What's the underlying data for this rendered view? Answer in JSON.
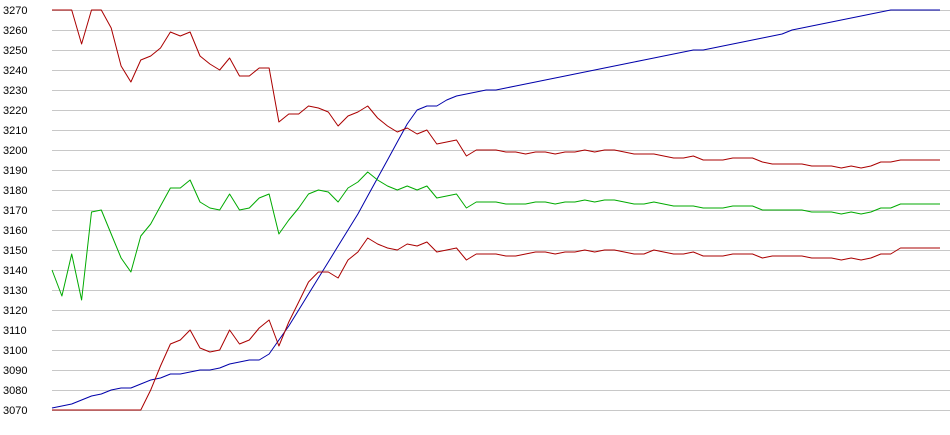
{
  "chart_data": {
    "type": "line",
    "title": "",
    "xlabel": "",
    "ylabel": "",
    "ylim": [
      3070,
      3270
    ],
    "y_ticks": [
      3070,
      3080,
      3090,
      3100,
      3110,
      3120,
      3130,
      3140,
      3150,
      3160,
      3170,
      3180,
      3190,
      3200,
      3210,
      3220,
      3230,
      3240,
      3250,
      3260,
      3270
    ],
    "grid": true,
    "legend": "none",
    "x": [
      0,
      1,
      2,
      3,
      4,
      5,
      6,
      7,
      8,
      9,
      10,
      11,
      12,
      13,
      14,
      15,
      16,
      17,
      18,
      19,
      20,
      21,
      22,
      23,
      24,
      25,
      26,
      27,
      28,
      29,
      30,
      31,
      32,
      33,
      34,
      35,
      36,
      37,
      38,
      39,
      40,
      41,
      42,
      43,
      44,
      45,
      46,
      47,
      48,
      49,
      50,
      51,
      52,
      53,
      54,
      55,
      56,
      57,
      58,
      59,
      60,
      61,
      62,
      63,
      64,
      65,
      66,
      67,
      68,
      69,
      70,
      71,
      72,
      73,
      74,
      75,
      76,
      77,
      78,
      79,
      80,
      81,
      82,
      83,
      84,
      85,
      86,
      87,
      88,
      89,
      90
    ],
    "series": [
      {
        "color": "#0000aa",
        "values": [
          3071,
          3072,
          3073,
          3075,
          3077,
          3078,
          3080,
          3081,
          3081,
          3083,
          3085,
          3086,
          3088,
          3088,
          3089,
          3090,
          3090,
          3091,
          3093,
          3094,
          3095,
          3095,
          3098,
          3105,
          3112,
          3120,
          3128,
          3136,
          3144,
          3152,
          3160,
          3168,
          3177,
          3186,
          3195,
          3204,
          3213,
          3220,
          3222,
          3222,
          3225,
          3227,
          3228,
          3229,
          3230,
          3230,
          3231,
          3232,
          3233,
          3234,
          3235,
          3236,
          3237,
          3238,
          3239,
          3240,
          3241,
          3242,
          3243,
          3244,
          3245,
          3246,
          3247,
          3248,
          3249,
          3250,
          3250,
          3251,
          3252,
          3253,
          3254,
          3255,
          3256,
          3257,
          3258,
          3260,
          3261,
          3262,
          3263,
          3264,
          3265,
          3266,
          3267,
          3268,
          3269,
          3270,
          3270,
          3270,
          3270,
          3270,
          3270
        ]
      },
      {
        "color": "#aa0000",
        "values": [
          3270,
          3270,
          3270,
          3253,
          3270,
          3270,
          3261,
          3242,
          3234,
          3245,
          3247,
          3251,
          3259,
          3257,
          3259,
          3247,
          3243,
          3240,
          3246,
          3237,
          3237,
          3241,
          3241,
          3214,
          3218,
          3218,
          3222,
          3221,
          3219,
          3212,
          3217,
          3219,
          3222,
          3216,
          3212,
          3209,
          3211,
          3208,
          3210,
          3203,
          3204,
          3205,
          3197,
          3200,
          3200,
          3200,
          3199,
          3199,
          3198,
          3199,
          3199,
          3198,
          3199,
          3199,
          3200,
          3199,
          3200,
          3200,
          3199,
          3198,
          3198,
          3198,
          3197,
          3196,
          3196,
          3197,
          3195,
          3195,
          3195,
          3196,
          3196,
          3196,
          3194,
          3193,
          3193,
          3193,
          3193,
          3192,
          3192,
          3192,
          3191,
          3192,
          3191,
          3192,
          3194,
          3194,
          3195,
          3195,
          3195,
          3195,
          3195
        ]
      },
      {
        "color": "#00aa00",
        "values": [
          3140,
          3127,
          3148,
          3125,
          3169,
          3170,
          3158,
          3146,
          3139,
          3157,
          3163,
          3172,
          3181,
          3181,
          3185,
          3174,
          3171,
          3170,
          3178,
          3170,
          3171,
          3176,
          3178,
          3158,
          3165,
          3171,
          3178,
          3180,
          3179,
          3174,
          3181,
          3184,
          3189,
          3185,
          3182,
          3180,
          3182,
          3180,
          3182,
          3176,
          3177,
          3178,
          3171,
          3174,
          3174,
          3174,
          3173,
          3173,
          3173,
          3174,
          3174,
          3173,
          3174,
          3174,
          3175,
          3174,
          3175,
          3175,
          3174,
          3173,
          3173,
          3174,
          3173,
          3172,
          3172,
          3172,
          3171,
          3171,
          3171,
          3172,
          3172,
          3172,
          3170,
          3170,
          3170,
          3170,
          3170,
          3169,
          3169,
          3169,
          3168,
          3169,
          3168,
          3169,
          3171,
          3171,
          3173,
          3173,
          3173,
          3173,
          3173
        ]
      },
      {
        "color": "#aa0000",
        "values": [
          3070,
          3070,
          3070,
          3070,
          3070,
          3070,
          3070,
          3070,
          3070,
          3070,
          3080,
          3092,
          3103,
          3105,
          3110,
          3101,
          3099,
          3100,
          3110,
          3103,
          3105,
          3111,
          3115,
          3102,
          3114,
          3124,
          3134,
          3139,
          3139,
          3136,
          3145,
          3149,
          3156,
          3153,
          3151,
          3150,
          3153,
          3152,
          3154,
          3149,
          3150,
          3151,
          3145,
          3148,
          3148,
          3148,
          3147,
          3147,
          3148,
          3149,
          3149,
          3148,
          3149,
          3149,
          3150,
          3149,
          3150,
          3150,
          3149,
          3148,
          3148,
          3150,
          3149,
          3148,
          3148,
          3149,
          3147,
          3147,
          3147,
          3148,
          3148,
          3148,
          3146,
          3147,
          3147,
          3147,
          3147,
          3146,
          3146,
          3146,
          3145,
          3146,
          3145,
          3146,
          3148,
          3148,
          3151,
          3151,
          3151,
          3151,
          3151
        ]
      }
    ]
  }
}
